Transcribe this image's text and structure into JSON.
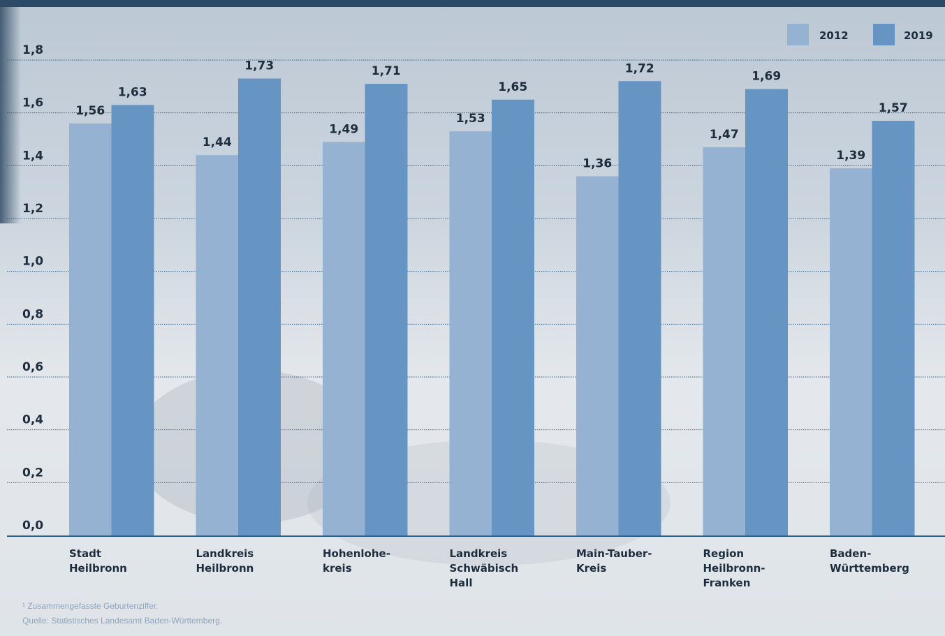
{
  "chart_data": {
    "type": "bar",
    "categories": [
      [
        "Stadt",
        "Heilbronn"
      ],
      [
        "Landkreis",
        "Heilbronn"
      ],
      [
        "Hohenlohe-",
        "kreis"
      ],
      [
        "Landkreis",
        "Schwäbisch",
        "Hall"
      ],
      [
        "Main-Tauber-",
        "Kreis"
      ],
      [
        "Region",
        "Heilbronn-",
        "Franken"
      ],
      [
        "Baden-",
        "Württemberg"
      ]
    ],
    "series": [
      {
        "name": "2012",
        "color": "#95b2d3",
        "values": [
          1.56,
          1.44,
          1.49,
          1.53,
          1.36,
          1.47,
          1.39
        ],
        "labels": [
          "1,56",
          "1,44",
          "1,49",
          "1,53",
          "1,36",
          "1,47",
          "1,39"
        ]
      },
      {
        "name": "2019",
        "color": "#6795c3",
        "values": [
          1.63,
          1.73,
          1.71,
          1.65,
          1.72,
          1.69,
          1.57
        ],
        "labels": [
          "1,63",
          "1,73",
          "1,71",
          "1,65",
          "1,72",
          "1,69",
          "1,57"
        ]
      }
    ],
    "yticks": [
      0.0,
      0.2,
      0.4,
      0.6,
      0.8,
      1.0,
      1.2,
      1.4,
      1.6,
      1.8
    ],
    "ytick_labels": [
      "0,0",
      "0,2",
      "0,4",
      "0,6",
      "0,8",
      "1,0",
      "1,2",
      "1,4",
      "1,6",
      "1,8"
    ],
    "ylim": [
      0,
      1.8
    ],
    "grid": true,
    "legend_position": "top-right",
    "axis_color": "#2c5f96",
    "grid_color": "#2f5f91"
  },
  "footnotes": {
    "note": "¹ Zusammengefasste Geburtenziffer.",
    "source": "Quelle: Statistisches Landesamt Baden-Württemberg."
  }
}
